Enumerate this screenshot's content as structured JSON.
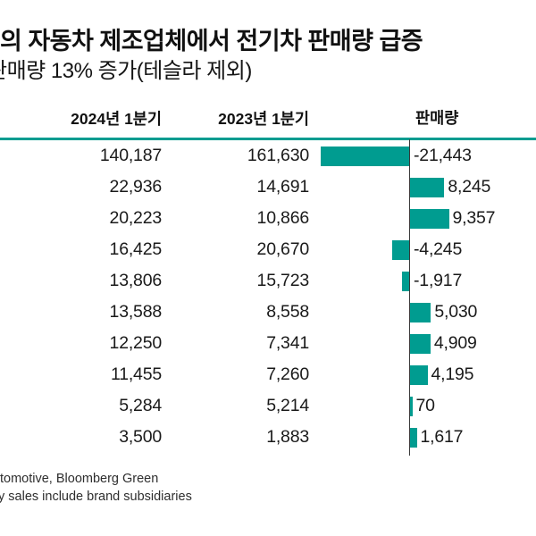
{
  "theme": {
    "accent": "#009C90",
    "axis_line": "#3a3a3a",
    "text_color": "#1a1a1a",
    "background": "#ffffff"
  },
  "title": {
    "line1": "의 자동차 제조업체에서 전기차 판매량 급증",
    "line2": "판매량 13% 증가(테슬라 제외)"
  },
  "footer": {
    "line1": "tomotive, Bloomberg Green",
    "line2": "y sales include brand subsidiaries"
  },
  "chart_data": {
    "type": "bar",
    "title": "의 자동차 제조업체에서 전기차 판매량 급증",
    "subtitle": "판매량 13% 증가(테슬라 제외)",
    "orientation": "horizontal-diverging",
    "columns": [
      "2024년 1분기",
      "2023년 1분기",
      "판매량"
    ],
    "legend": "none",
    "bar_color": "#009C90",
    "rows": [
      {
        "q1_2024": "140,187",
        "q1_2023": "161,630",
        "change": -21443,
        "change_label": "-21,443"
      },
      {
        "q1_2024": "22,936",
        "q1_2023": "14,691",
        "change": 8245,
        "change_label": "8,245"
      },
      {
        "q1_2024": "20,223",
        "q1_2023": "10,866",
        "change": 9357,
        "change_label": "9,357"
      },
      {
        "q1_2024": "16,425",
        "q1_2023": "20,670",
        "change": -4245,
        "change_label": "-4,245"
      },
      {
        "q1_2024": "13,806",
        "q1_2023": "15,723",
        "change": -1917,
        "change_label": "-1,917"
      },
      {
        "q1_2024": "13,588",
        "q1_2023": "8,558",
        "change": 5030,
        "change_label": "5,030"
      },
      {
        "q1_2024": "12,250",
        "q1_2023": "7,341",
        "change": 4909,
        "change_label": "4,909"
      },
      {
        "q1_2024": "11,455",
        "q1_2023": "7,260",
        "change": 4195,
        "change_label": "4,195"
      },
      {
        "q1_2024": "5,284",
        "q1_2023": "5,214",
        "change": 70,
        "change_label": "70"
      },
      {
        "q1_2024": "3,500",
        "q1_2023": "1,883",
        "change": 1617,
        "change_label": "1,617"
      }
    ]
  }
}
